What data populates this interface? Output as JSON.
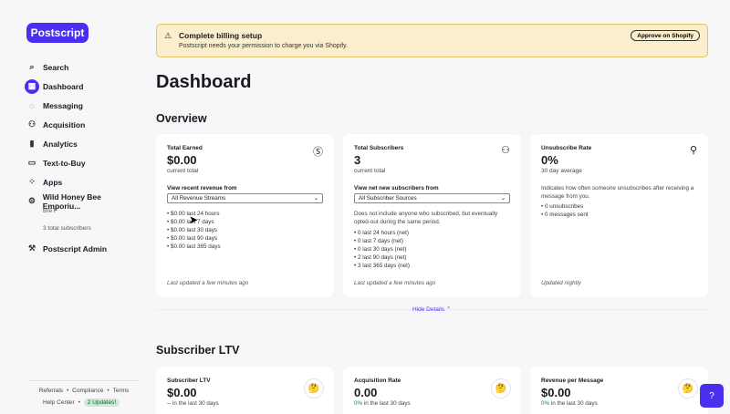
{
  "app": {
    "logo": "Postscript"
  },
  "nav": {
    "search": "Search",
    "dashboard": "Dashboard",
    "messaging": "Messaging",
    "acquisition": "Acquisition",
    "analytics": "Analytics",
    "text_to_buy": "Text-to-Buy",
    "apps": "Apps",
    "shop_name": "Wild Honey Bee Emporiu...",
    "shop_user": "Bre F",
    "shop_subscribers": "3 total subscribers",
    "admin": "Postscript Admin"
  },
  "footer": {
    "referrals": "Referrals",
    "compliance": "Compliance",
    "terms": "Terms",
    "help_center": "Help Center",
    "updates": "2 Updates!"
  },
  "banner": {
    "title": "Complete billing setup",
    "text": "Postscript needs your permission to charge you via Shopify.",
    "button": "Approve on Shopify"
  },
  "page_title": "Dashboard",
  "overview": {
    "title": "Overview",
    "earned": {
      "title": "Total Earned",
      "value": "$0.00",
      "sub": "current total",
      "filter_label": "View recent revenue from",
      "select": "All Revenue Streams",
      "items": [
        "$0.00 last 24 hours",
        "$0.00 last 7 days",
        "$0.00 last 30 days",
        "$0.00 last 90 days",
        "$0.00 last 365 days"
      ],
      "updated": "Last updated a few minutes ago"
    },
    "subscribers": {
      "title": "Total Subscribers",
      "value": "3",
      "sub": "current total",
      "filter_label": "View net new subscribers from",
      "select": "All Subscriber Sources",
      "desc": "Does not include anyone who subscribed, but eventually opted-out during the same period.",
      "items": [
        "0 last 24 hours (net)",
        "0 last 7 days (net)",
        "0 last 30 days (net)",
        "2 last 90 days (net)",
        "3 last 365 days (net)"
      ],
      "updated": "Last updated a few minutes ago"
    },
    "unsubscribe": {
      "title": "Unsubscribe Rate",
      "value": "0%",
      "sub": "30 day average",
      "desc": "Indicates how often someone unsubscribes after receiving a message from you.",
      "items": [
        "0 unsubscribes",
        "0 messages sent"
      ],
      "updated": "Updated nightly"
    },
    "hide_details": "Hide Details"
  },
  "ltv": {
    "title": "Subscriber LTV",
    "cards": [
      {
        "title": "Subscriber LTV",
        "value": "$0.00",
        "change": "--",
        "sub": "in the last 30 days"
      },
      {
        "title": "Acquisition Rate",
        "value": "0.00",
        "change": "0%",
        "sub": "in the last 30 days"
      },
      {
        "title": "Revenue per Message",
        "value": "$0.00",
        "change": "0%",
        "sub": "in the last 30 days"
      }
    ]
  }
}
